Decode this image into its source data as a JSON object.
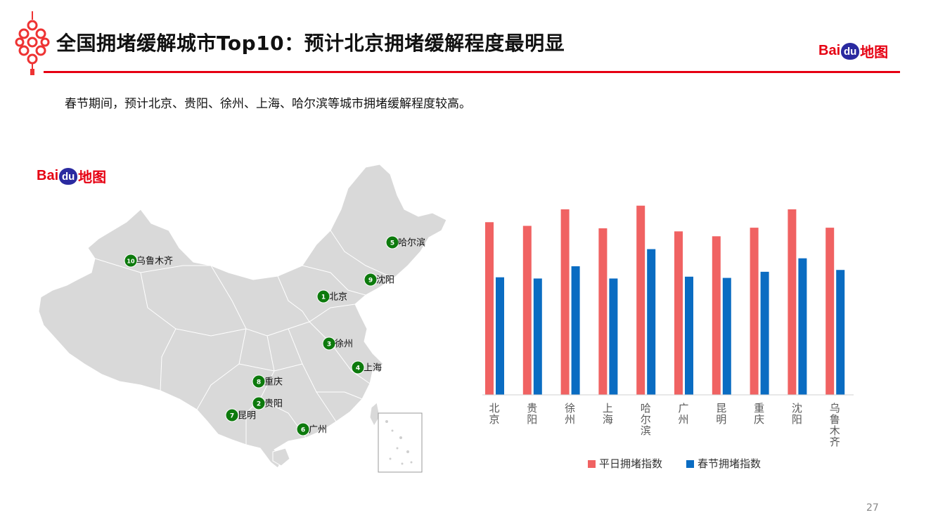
{
  "header": {
    "title": "全国拥堵缓解城市Top10：预计北京拥堵缓解程度最明显",
    "logo": {
      "brand": "Bai",
      "badge": "du",
      "suffix": "地图"
    }
  },
  "subtitle": "春节期间，预计北京、贵阳、徐州、上海、哈尔滨等城市拥堵缓解程度较高。",
  "map": {
    "logo": {
      "brand": "Bai",
      "badge": "du",
      "suffix": "地图"
    },
    "marker_color": "#0d7a0d",
    "markers": [
      {
        "rank": "1",
        "city": "北京"
      },
      {
        "rank": "2",
        "city": "贵阳"
      },
      {
        "rank": "3",
        "city": "徐州"
      },
      {
        "rank": "4",
        "city": "上海"
      },
      {
        "rank": "5",
        "city": "哈尔滨"
      },
      {
        "rank": "6",
        "city": "广州"
      },
      {
        "rank": "7",
        "city": "昆明"
      },
      {
        "rank": "8",
        "city": "重庆"
      },
      {
        "rank": "9",
        "city": "沈阳"
      },
      {
        "rank": "10",
        "city": "乌鲁木齐"
      }
    ]
  },
  "chart_data": {
    "type": "bar",
    "categories": [
      "北京",
      "贵阳",
      "徐州",
      "上海",
      "哈尔滨",
      "广州",
      "昆明",
      "重庆",
      "沈阳",
      "乌鲁木齐"
    ],
    "series": [
      {
        "name": "平日拥堵指数",
        "color": "#f06262",
        "values": [
          2.82,
          2.76,
          3.03,
          2.72,
          3.09,
          2.67,
          2.59,
          2.73,
          3.03,
          2.73
        ]
      },
      {
        "name": "春节拥堵指数",
        "color": "#0a6cc2",
        "values": [
          1.92,
          1.9,
          2.1,
          1.9,
          2.38,
          1.93,
          1.91,
          2.01,
          2.23,
          2.04
        ]
      }
    ],
    "ylim": [
      0,
      3.5
    ],
    "grid": false,
    "legend": "bottom"
  },
  "footer": {
    "page_number": "27"
  }
}
